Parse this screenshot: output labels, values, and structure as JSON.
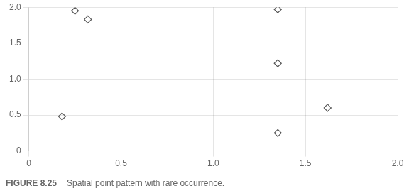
{
  "chart_data": {
    "type": "scatter",
    "title": "FIGURE 8.25",
    "subtitle": "Spatial point pattern with rare occurrence.",
    "x": [
      0.25,
      0.32,
      1.35,
      1.35,
      1.62,
      0.18,
      1.35
    ],
    "values": [
      1.95,
      1.83,
      1.97,
      1.22,
      0.6,
      0.48,
      0.25
    ],
    "color": "#555555",
    "marker": "diamond",
    "xlim": [
      0,
      2
    ],
    "ylim": [
      0,
      2
    ],
    "xticks": [
      0,
      0.5,
      1,
      1.5,
      2
    ],
    "yticks": [
      0,
      0.5,
      1,
      1.5,
      2
    ],
    "grid": true
  }
}
